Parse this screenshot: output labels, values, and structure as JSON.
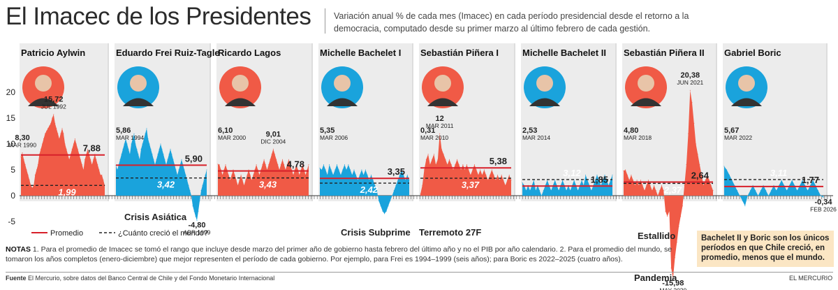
{
  "title": "El Imacec de los Presidentes",
  "subtitle": "Variación anual % de cada mes (Imacec) en cada período presidencial desde el retorno a la democracia, computado desde su primer marzo al último febrero de cada gestión.",
  "legend": {
    "avg": "Promedio",
    "world": "¿Cuánto creció el mundo?"
  },
  "notes": {
    "label": "NOTAS",
    "text": "1. Para el promedio de Imacec se tomó el rango que incluye desde marzo del primer año de gobierno hasta febrero del último año y no el PIB por año calendario. 2. Para el promedio del mundo, se tomaron los años completos (enero-diciembre) que mejor representen el período de cada gobierno. Por ejemplo, para Frei es 1994–1999 (seis años); para Boric es 2022–2025 (cuatro años)."
  },
  "source": {
    "label": "Fuente",
    "text": "El Mercurio, sobre datos del Banco Central de Chile y del Fondo Monetario Internacional"
  },
  "credit": "EL MERCURIO",
  "conclusion": "Bachelet II y Boric son los únicos períodos en que Chile creció, en promedio, menos que el mundo.",
  "colors": {
    "red": "#f05a46",
    "blue": "#1aa3dc",
    "avg_line": "#d7202a",
    "world_line": "#222222",
    "panel_bg": "#ececec"
  },
  "chart_data": {
    "type": "area",
    "y_ticks": [
      20,
      15,
      10,
      5,
      0,
      -5
    ],
    "ylim": [
      -16,
      21
    ],
    "grid": false,
    "series": [
      {
        "name": "Patricio Aylwin",
        "color": "red",
        "avg": 7.88,
        "world": 1.99,
        "values": [
          7.5,
          8.3,
          7,
          6,
          5,
          4,
          3,
          2,
          1.5,
          2,
          4,
          5,
          6,
          8,
          9,
          10,
          11,
          12,
          12.5,
          13,
          13.5,
          14,
          15,
          15.72,
          14,
          13,
          12,
          11,
          12,
          13,
          12,
          10,
          9,
          8,
          7,
          8,
          9,
          10,
          11,
          10,
          9,
          8,
          7,
          6,
          5,
          7,
          8,
          9,
          8,
          7,
          6,
          7,
          8,
          7,
          6,
          5,
          4,
          4,
          3,
          2
        ],
        "labels": [
          {
            "value": "8,30",
            "date": "MAR 1990",
            "i": 1
          },
          {
            "value": "15,72",
            "date": "JUL 1992",
            "i": 23
          }
        ]
      },
      {
        "name": "Eduardo Frei Ruiz-Tagle",
        "color": "blue",
        "avg": 5.9,
        "world": 3.42,
        "values": [
          5.86,
          5,
          6,
          7,
          8,
          9,
          10,
          11,
          10,
          9,
          8,
          10,
          11,
          12,
          10,
          9,
          8,
          7,
          9,
          10,
          11,
          12,
          13,
          11,
          10,
          9,
          8,
          7,
          6,
          7,
          8,
          9,
          10,
          9,
          8,
          7,
          6,
          7,
          8,
          9,
          8,
          7,
          6,
          5,
          4,
          5,
          6,
          7,
          6,
          5,
          4,
          3,
          2,
          1,
          0,
          -2,
          -3,
          -4,
          -4.8,
          -3,
          -1,
          1,
          2,
          3,
          4,
          5
        ],
        "labels": [
          {
            "value": "5,86",
            "date": "MAR 1994",
            "i": 0
          },
          {
            "value": "-4,80",
            "date": "ABR 1999",
            "i": 58
          }
        ],
        "event": "Crisis Asiática"
      },
      {
        "name": "Ricardo Lagos",
        "color": "red",
        "avg": 4.78,
        "world": 3.43,
        "values": [
          6.1,
          6,
          5,
          4,
          5,
          6,
          5,
          4,
          3,
          4,
          5,
          4,
          3,
          2,
          3,
          4,
          3,
          2,
          3,
          4,
          5,
          4,
          3,
          4,
          5,
          6,
          5,
          4,
          5,
          6,
          7,
          6,
          5,
          6,
          7,
          8,
          9.01,
          8,
          7,
          6,
          5,
          6,
          7,
          6,
          5,
          6,
          7,
          6,
          5,
          4,
          5,
          6,
          5,
          4,
          5,
          6,
          5,
          4,
          5,
          6
        ],
        "labels": [
          {
            "value": "6,10",
            "date": "MAR 2000",
            "i": 0
          },
          {
            "value": "9,01",
            "date": "DIC 2004",
            "i": 36
          }
        ]
      },
      {
        "name": "Michelle Bachelet I",
        "color": "blue",
        "avg": 3.35,
        "world": 2.42,
        "values": [
          5.35,
          5,
          6,
          5,
          4,
          6,
          5,
          4,
          5,
          6,
          5,
          4,
          5,
          6,
          5,
          6,
          5,
          4,
          5,
          4,
          3,
          4,
          5,
          4,
          5,
          4,
          3,
          4,
          3,
          2,
          1,
          -1,
          -2,
          -3,
          -3.5,
          -3,
          -2,
          -1,
          0,
          1,
          2,
          3,
          4,
          5,
          4,
          3,
          4,
          3
        ],
        "labels": [
          {
            "value": "5,35",
            "date": "MAR 2006",
            "i": 0
          }
        ],
        "event": "Crisis Subprime"
      },
      {
        "name": "Sebastián Piñera I",
        "color": "red",
        "avg": 5.38,
        "world": 3.37,
        "values": [
          0.31,
          2,
          5,
          7,
          8,
          6,
          7,
          8,
          6,
          7,
          12,
          9,
          8,
          7,
          6,
          7,
          6,
          5,
          6,
          7,
          6,
          5,
          6,
          5,
          6,
          5,
          4,
          5,
          6,
          5,
          4,
          5,
          4,
          5,
          4,
          3,
          4,
          5,
          4,
          3,
          4,
          3,
          4,
          3,
          2,
          3,
          4,
          3
        ],
        "labels": [
          {
            "value": "0,31",
            "date": "MAR 2010",
            "i": 0
          },
          {
            "value": "12",
            "date": "MAR 2011",
            "i": 10
          }
        ],
        "event": "Terremoto 27F"
      },
      {
        "name": "Michelle Bachelet II",
        "color": "blue",
        "avg": 1.85,
        "world": 3.12,
        "values": [
          2.53,
          2,
          1,
          2,
          1,
          2,
          3,
          1,
          2,
          1,
          0,
          1,
          2,
          3,
          2,
          1,
          2,
          3,
          2,
          1,
          2,
          3,
          2,
          1,
          2,
          1,
          2,
          3,
          2,
          1,
          2,
          3,
          2,
          4,
          3,
          2,
          1,
          2,
          3,
          4,
          3,
          2,
          3,
          4,
          3,
          2,
          3,
          4
        ],
        "labels": [
          {
            "value": "2,53",
            "date": "MAR 2014",
            "i": 0
          }
        ]
      },
      {
        "name": "Sebastián Piñera II",
        "color": "red",
        "avg": 2.64,
        "world": 2.37,
        "values": [
          4.8,
          5,
          4,
          3,
          4,
          3,
          2,
          3,
          2,
          3,
          2,
          1,
          2,
          3,
          2,
          1,
          2,
          1,
          0,
          1,
          2,
          1,
          -3,
          -4,
          -3,
          -14,
          -15.98,
          -12,
          -9,
          -6,
          -4,
          -2,
          2,
          6,
          12,
          20.38,
          18,
          14,
          10,
          8,
          6,
          4,
          2,
          3,
          4,
          3,
          2,
          1
        ],
        "labels": [
          {
            "value": "4,80",
            "date": "MAR 2018",
            "i": 0
          },
          {
            "value": "20,38",
            "date": "JUN 2021",
            "i": 35
          },
          {
            "value": "-15,98",
            "date": "MAY 2020",
            "i": 26
          }
        ],
        "event": "Estallido",
        "event2": "Pandemia"
      },
      {
        "name": "Gabriel Boric",
        "color": "blue",
        "avg": 1.77,
        "world": 3.11,
        "values": [
          5.67,
          5,
          4,
          3,
          2,
          1,
          0,
          -1,
          -2,
          0,
          1,
          2,
          1,
          0,
          1,
          2,
          1,
          0,
          1,
          2,
          1,
          2,
          3,
          2,
          1,
          2,
          3,
          2,
          1,
          2,
          3,
          2,
          1,
          2,
          3,
          2,
          1,
          0,
          -0.34
        ],
        "labels": [
          {
            "value": "5,67",
            "date": "MAR 2022",
            "i": 0
          },
          {
            "value": "-0,34",
            "date": "FEB 2026",
            "i": 38
          }
        ]
      }
    ]
  }
}
